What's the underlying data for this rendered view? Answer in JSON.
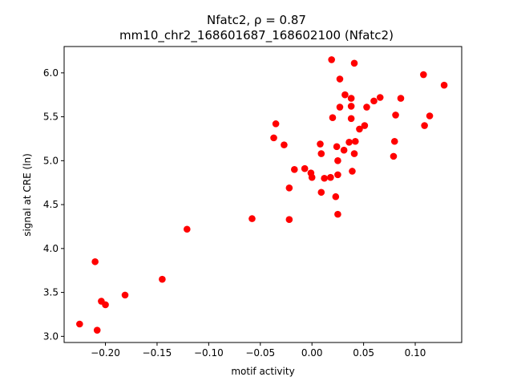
{
  "chart_data": {
    "type": "scatter",
    "title_line1": "Nfatc2, ρ = 0.87",
    "title_line2": "mm10_chr2_168601687_168602100 (Nfatc2)",
    "xlabel": "motif activity",
    "ylabel": "signal at CRE (ln)",
    "xlim": [
      -0.24,
      0.145
    ],
    "ylim": [
      2.93,
      6.3
    ],
    "xticks": [
      -0.2,
      -0.15,
      -0.1,
      -0.05,
      0.0,
      0.05,
      0.1
    ],
    "xtick_labels": [
      "−0.20",
      "−0.15",
      "−0.10",
      "−0.05",
      "0.00",
      "0.05",
      "0.10"
    ],
    "yticks": [
      3.0,
      3.5,
      4.0,
      4.5,
      5.0,
      5.5,
      6.0
    ],
    "ytick_labels": [
      "3.0",
      "3.5",
      "4.0",
      "4.5",
      "5.0",
      "5.5",
      "6.0"
    ],
    "grid": false,
    "marker_color": "#ff0000",
    "points": [
      {
        "x": -0.225,
        "y": 3.14
      },
      {
        "x": -0.208,
        "y": 3.07
      },
      {
        "x": -0.204,
        "y": 3.4
      },
      {
        "x": -0.2,
        "y": 3.36
      },
      {
        "x": -0.21,
        "y": 3.85
      },
      {
        "x": -0.181,
        "y": 3.47
      },
      {
        "x": -0.145,
        "y": 3.65
      },
      {
        "x": -0.121,
        "y": 4.22
      },
      {
        "x": -0.058,
        "y": 4.34
      },
      {
        "x": -0.022,
        "y": 4.33
      },
      {
        "x": -0.022,
        "y": 4.69
      },
      {
        "x": -0.017,
        "y": 4.9
      },
      {
        "x": -0.007,
        "y": 4.91
      },
      {
        "x": -0.001,
        "y": 4.86
      },
      {
        "x": 0.0,
        "y": 4.81
      },
      {
        "x": -0.027,
        "y": 5.18
      },
      {
        "x": -0.037,
        "y": 5.26
      },
      {
        "x": -0.035,
        "y": 5.42
      },
      {
        "x": 0.009,
        "y": 4.64
      },
      {
        "x": 0.012,
        "y": 4.8
      },
      {
        "x": 0.018,
        "y": 4.81
      },
      {
        "x": 0.009,
        "y": 5.08
      },
      {
        "x": 0.008,
        "y": 5.19
      },
      {
        "x": 0.023,
        "y": 4.59
      },
      {
        "x": 0.025,
        "y": 4.39
      },
      {
        "x": 0.025,
        "y": 4.84
      },
      {
        "x": 0.025,
        "y": 5.0
      },
      {
        "x": 0.024,
        "y": 5.16
      },
      {
        "x": 0.031,
        "y": 5.12
      },
      {
        "x": 0.039,
        "y": 4.88
      },
      {
        "x": 0.041,
        "y": 5.08
      },
      {
        "x": 0.036,
        "y": 5.21
      },
      {
        "x": 0.042,
        "y": 5.22
      },
      {
        "x": 0.046,
        "y": 5.36
      },
      {
        "x": 0.051,
        "y": 5.4
      },
      {
        "x": 0.02,
        "y": 5.49
      },
      {
        "x": 0.027,
        "y": 5.61
      },
      {
        "x": 0.038,
        "y": 5.48
      },
      {
        "x": 0.038,
        "y": 5.62
      },
      {
        "x": 0.032,
        "y": 5.75
      },
      {
        "x": 0.038,
        "y": 5.71
      },
      {
        "x": 0.053,
        "y": 5.61
      },
      {
        "x": 0.06,
        "y": 5.68
      },
      {
        "x": 0.066,
        "y": 5.72
      },
      {
        "x": 0.027,
        "y": 5.93
      },
      {
        "x": 0.019,
        "y": 6.15
      },
      {
        "x": 0.041,
        "y": 6.11
      },
      {
        "x": 0.079,
        "y": 5.05
      },
      {
        "x": 0.08,
        "y": 5.22
      },
      {
        "x": 0.081,
        "y": 5.52
      },
      {
        "x": 0.086,
        "y": 5.71
      },
      {
        "x": 0.108,
        "y": 5.98
      },
      {
        "x": 0.109,
        "y": 5.4
      },
      {
        "x": 0.114,
        "y": 5.51
      },
      {
        "x": 0.128,
        "y": 5.86
      }
    ]
  }
}
